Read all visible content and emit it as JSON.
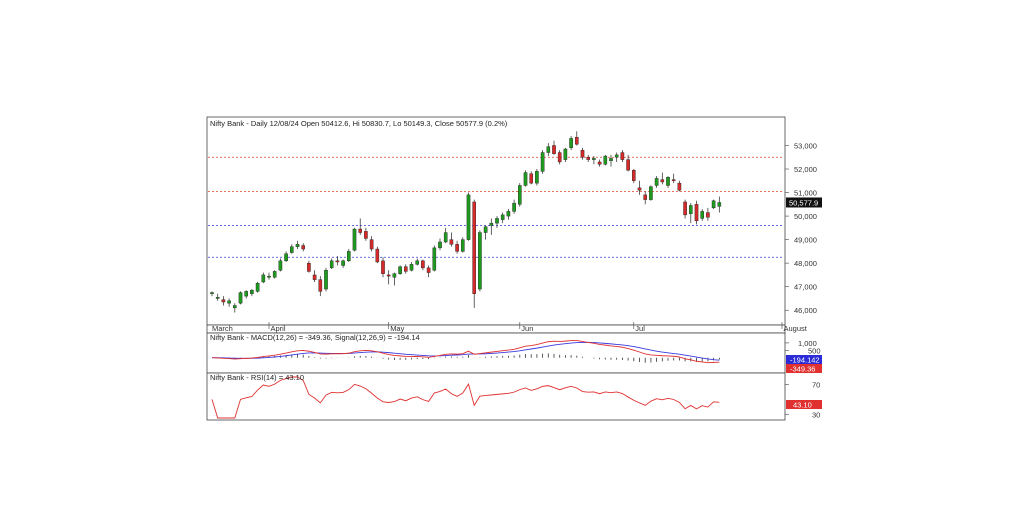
{
  "colors": {
    "up": "#1e9a1e",
    "down": "#d42a2a",
    "resistance": "#e0442a",
    "support": "#3a3ae0",
    "macd": "#e03030",
    "signal": "#3a3ae0",
    "rsi": "#e03030",
    "frame": "#444444"
  },
  "chart_data": [
    {
      "type": "candlestick",
      "title": "Nifty Bank - Daily 12/08/24 Open 50412.6, Hi 50830.7, Lo 50149.3, Close 50577.9 (0.2%)",
      "ylim": [
        45500,
        53700
      ],
      "yticks": [
        46000,
        47000,
        48000,
        49000,
        50000,
        51000,
        52000,
        53000
      ],
      "ytick_labels": [
        "46,000",
        "47,000",
        "48,000",
        "49,000",
        "50,000",
        "51,000",
        "52,000",
        "53,000"
      ],
      "last_price_label": "50,577.9",
      "last_price": 50577.9,
      "month_labels": [
        {
          "label": "March",
          "index": 0
        },
        {
          "label": "April",
          "index": 10
        },
        {
          "label": "May",
          "index": 31
        },
        {
          "label": "Jun",
          "index": 54
        },
        {
          "label": "Jul",
          "index": 74
        },
        {
          "label": "August",
          "index": 100
        }
      ],
      "horizontal_lines": [
        {
          "value": 52500,
          "kind": "resistance"
        },
        {
          "value": 51050,
          "kind": "resistance"
        },
        {
          "value": 49600,
          "kind": "support"
        },
        {
          "value": 48250,
          "kind": "support"
        }
      ],
      "candles": [
        [
          46700,
          46800,
          46600,
          46750
        ],
        [
          46500,
          46700,
          46400,
          46550
        ],
        [
          46450,
          46600,
          46200,
          46350
        ],
        [
          46300,
          46500,
          46150,
          46400
        ],
        [
          46100,
          46300,
          45900,
          46200
        ],
        [
          46300,
          46800,
          46250,
          46750
        ],
        [
          46600,
          46850,
          46500,
          46800
        ],
        [
          46700,
          46900,
          46600,
          46850
        ],
        [
          46800,
          47200,
          46750,
          47150
        ],
        [
          47200,
          47600,
          47150,
          47500
        ],
        [
          47400,
          47600,
          47300,
          47450
        ],
        [
          47400,
          47700,
          47350,
          47650
        ],
        [
          47700,
          48200,
          47650,
          48100
        ],
        [
          48100,
          48500,
          48050,
          48400
        ],
        [
          48450,
          48800,
          48400,
          48700
        ],
        [
          48700,
          48950,
          48600,
          48800
        ],
        [
          48750,
          48850,
          48500,
          48600
        ],
        [
          48000,
          48100,
          47600,
          47650
        ],
        [
          47500,
          47700,
          47200,
          47300
        ],
        [
          47300,
          47450,
          46600,
          46800
        ],
        [
          46900,
          47800,
          46800,
          47700
        ],
        [
          47800,
          48200,
          47750,
          48100
        ],
        [
          48100,
          48300,
          47900,
          48050
        ],
        [
          47900,
          48150,
          47800,
          48100
        ],
        [
          48100,
          48600,
          48050,
          48500
        ],
        [
          48550,
          49500,
          48500,
          49450
        ],
        [
          49450,
          49900,
          49200,
          49300
        ],
        [
          49350,
          49500,
          48950,
          49050
        ],
        [
          49000,
          49150,
          48500,
          48600
        ],
        [
          48600,
          48700,
          48000,
          48050
        ],
        [
          48100,
          48250,
          47400,
          47550
        ],
        [
          47500,
          47700,
          47100,
          47450
        ],
        [
          47400,
          47600,
          47050,
          47550
        ],
        [
          47550,
          47900,
          47500,
          47850
        ],
        [
          47850,
          47950,
          47550,
          47650
        ],
        [
          47700,
          48050,
          47650,
          47950
        ],
        [
          47950,
          48200,
          47900,
          48100
        ],
        [
          48100,
          48150,
          47700,
          47800
        ],
        [
          47800,
          47900,
          47400,
          47600
        ],
        [
          47700,
          48750,
          47650,
          48650
        ],
        [
          48650,
          49050,
          48550,
          48900
        ],
        [
          48900,
          49500,
          48850,
          49300
        ],
        [
          49000,
          49300,
          48700,
          48800
        ],
        [
          48800,
          48950,
          48400,
          48500
        ],
        [
          48500,
          49100,
          48450,
          49000
        ],
        [
          49000,
          51000,
          48950,
          50900
        ],
        [
          50600,
          50700,
          46100,
          46700
        ],
        [
          46900,
          49400,
          46800,
          49300
        ],
        [
          49300,
          49600,
          49000,
          49550
        ],
        [
          49600,
          49900,
          49200,
          49700
        ],
        [
          49700,
          50000,
          49500,
          49900
        ],
        [
          49850,
          50150,
          49700,
          50050
        ],
        [
          50000,
          50300,
          49850,
          50200
        ],
        [
          50200,
          50700,
          50100,
          50550
        ],
        [
          50500,
          51400,
          50400,
          51300
        ],
        [
          51300,
          51950,
          51250,
          51850
        ],
        [
          51800,
          51900,
          51350,
          51400
        ],
        [
          51400,
          52000,
          51300,
          51900
        ],
        [
          51900,
          52800,
          51800,
          52700
        ],
        [
          52700,
          53100,
          52550,
          52950
        ],
        [
          53000,
          53200,
          52600,
          52650
        ],
        [
          52700,
          52800,
          52200,
          52300
        ],
        [
          52400,
          52900,
          52300,
          52850
        ],
        [
          52900,
          53400,
          52800,
          53300
        ],
        [
          53350,
          53600,
          53000,
          53050
        ],
        [
          52800,
          52900,
          52400,
          52500
        ],
        [
          52500,
          52600,
          52300,
          52400
        ],
        [
          52400,
          52550,
          52200,
          52450
        ],
        [
          52300,
          52400,
          52100,
          52200
        ],
        [
          52200,
          52600,
          52150,
          52550
        ],
        [
          52350,
          52600,
          52100,
          52450
        ],
        [
          52500,
          52700,
          52300,
          52600
        ],
        [
          52700,
          52800,
          52300,
          52400
        ],
        [
          52400,
          52600,
          51900,
          51950
        ],
        [
          51950,
          52000,
          51400,
          51500
        ],
        [
          51200,
          51500,
          50900,
          51100
        ],
        [
          50900,
          51050,
          50500,
          50700
        ],
        [
          50700,
          51300,
          50650,
          51250
        ],
        [
          51300,
          51700,
          51200,
          51600
        ],
        [
          51550,
          51850,
          51350,
          51450
        ],
        [
          51300,
          51700,
          51200,
          51650
        ],
        [
          51550,
          51800,
          51400,
          51500
        ],
        [
          51400,
          51500,
          51050,
          51100
        ],
        [
          50600,
          50700,
          49900,
          50050
        ],
        [
          50100,
          50550,
          49700,
          50450
        ],
        [
          50500,
          50650,
          49650,
          49800
        ],
        [
          49900,
          50300,
          49800,
          50200
        ],
        [
          50150,
          50350,
          49800,
          49950
        ],
        [
          50350,
          50700,
          50300,
          50650
        ],
        [
          50412.6,
          50830.7,
          50149.3,
          50577.9
        ]
      ]
    },
    {
      "type": "line",
      "title": "Nifty Bank - MACD(12,26) = -349.36, Signal(12,26,9) = -194.14",
      "ylim": [
        -900,
        1400
      ],
      "yticks": [
        1000,
        500
      ],
      "ytick_labels": [
        "1,000",
        "500"
      ],
      "series": [
        {
          "name": "MACD(12,26)",
          "tag": "-349.36"
        },
        {
          "name": "Signal(12,26,9)",
          "tag": "-194.142"
        }
      ]
    },
    {
      "type": "line",
      "title": "Nifty Bank - RSI(14) = 43.10",
      "ylim": [
        25,
        80
      ],
      "yticks": [
        70,
        30
      ],
      "ytick_labels": [
        "70",
        "30"
      ],
      "series": [
        {
          "name": "RSI(14)",
          "tag": "43.10"
        }
      ]
    }
  ]
}
